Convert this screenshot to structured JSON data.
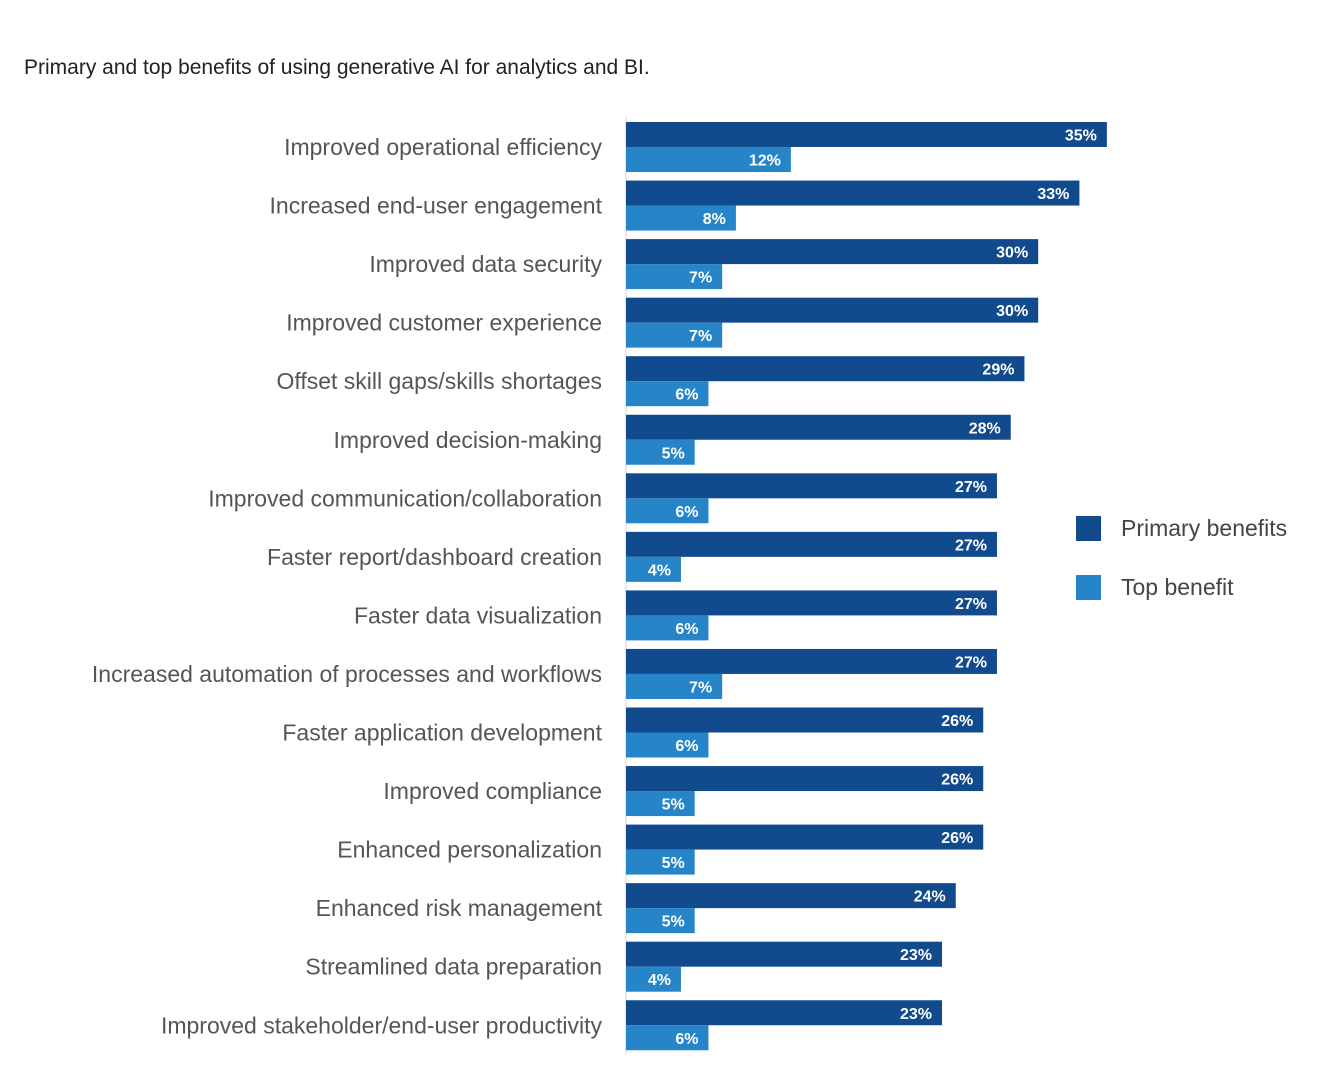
{
  "chart_data": {
    "type": "bar",
    "orientation": "horizontal",
    "title": "Primary and top benefits of using generative AI for analytics and BI.",
    "xlabel": "",
    "ylabel": "",
    "xlim": [
      0,
      35
    ],
    "grid": false,
    "legend_position": "right",
    "value_suffix": "%",
    "categories": [
      "Improved operational efficiency",
      "Increased end-user engagement",
      "Improved data security",
      "Improved customer experience",
      "Offset skill gaps/skills shortages",
      "Improved decision-making",
      "Improved communication/collaboration",
      "Faster report/dashboard creation",
      "Faster data visualization",
      "Increased automation of processes and workflows",
      "Faster application development",
      "Improved compliance",
      "Enhanced personalization",
      "Enhanced risk management",
      "Streamlined data preparation",
      "Improved stakeholder/end-user productivity"
    ],
    "series": [
      {
        "name": "Primary benefits",
        "color": "#124a8e",
        "values": [
          35,
          33,
          30,
          30,
          29,
          28,
          27,
          27,
          27,
          27,
          26,
          26,
          26,
          24,
          23,
          23
        ]
      },
      {
        "name": "Top benefit",
        "color": "#2684c8",
        "values": [
          12,
          8,
          7,
          7,
          6,
          5,
          6,
          4,
          6,
          7,
          6,
          5,
          5,
          5,
          4,
          6
        ]
      }
    ]
  }
}
